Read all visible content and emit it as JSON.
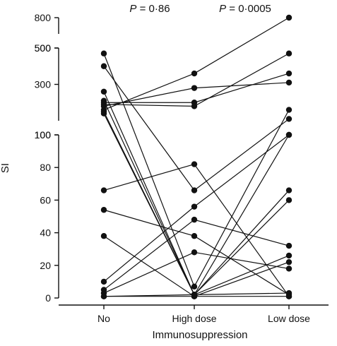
{
  "chart_data": {
    "type": "line",
    "ylabel": "SI",
    "xlabel": "Immunosuppression",
    "categories": [
      "No",
      "High dose",
      "Low dose"
    ],
    "annotations": [
      {
        "italic": "P",
        "text": " = 0·86"
      },
      {
        "italic": "P",
        "text": " = 0·0005"
      }
    ],
    "y_axis_segments": [
      {
        "ticks": [
          500,
          800
        ],
        "tick_labels": [
          "500",
          "800"
        ],
        "range": [
          500,
          800
        ]
      },
      {
        "ticks": [
          100,
          300,
          500
        ],
        "tick_labels": [
          "100",
          "300",
          "500"
        ],
        "range": [
          100,
          500
        ]
      },
      {
        "ticks": [
          0,
          20,
          40,
          60,
          80,
          100
        ],
        "tick_labels": [
          "0",
          "20",
          "40",
          "60",
          "80",
          "100"
        ],
        "range": [
          0,
          100
        ]
      }
    ],
    "series": [
      {
        "values": [
          470,
          7,
          160
        ]
      },
      {
        "values": [
          400,
          66,
          110
        ]
      },
      {
        "values": [
          260,
          2,
          100
        ]
      },
      {
        "values": [
          210,
          2,
          66
        ]
      },
      {
        "values": [
          200,
          200,
          360
        ]
      },
      {
        "values": [
          190,
          180,
          470
        ]
      },
      {
        "values": [
          180,
          280,
          310
        ]
      },
      {
        "values": [
          160,
          360,
          800
        ]
      },
      {
        "values": [
          150,
          2,
          60
        ]
      },
      {
        "values": [
          140,
          2,
          3
        ]
      },
      {
        "values": [
          66,
          82,
          1
        ]
      },
      {
        "values": [
          54,
          38,
          2
        ]
      },
      {
        "values": [
          38,
          1,
          22
        ]
      },
      {
        "values": [
          10,
          56,
          100
        ]
      },
      {
        "values": [
          5,
          48,
          32
        ]
      },
      {
        "values": [
          3,
          28,
          18
        ]
      },
      {
        "values": [
          1,
          2,
          26
        ]
      },
      {
        "values": [
          1,
          1,
          1
        ]
      }
    ],
    "marker": "filled-circle",
    "line_color": "#111111"
  }
}
